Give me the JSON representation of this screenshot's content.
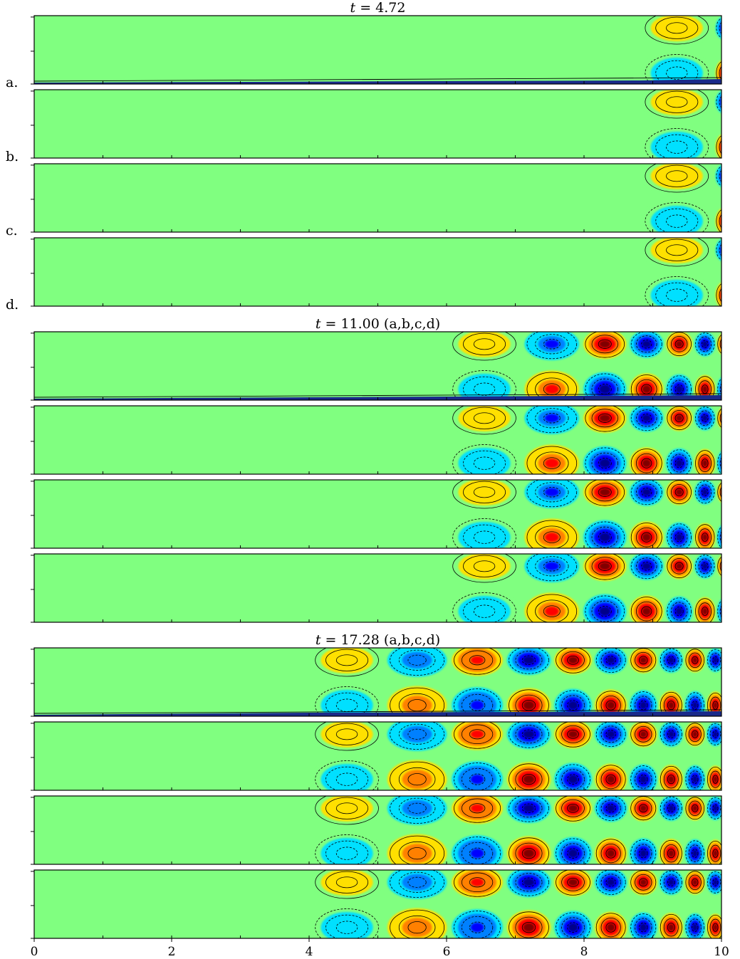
{
  "chart_data": {
    "type": "heatmap",
    "description_of_content": "filled contour fields with solid (positive) and dashed (negative) contour lines",
    "colormap": "jet",
    "xlim": [
      0,
      10
    ],
    "x_ticks": [
      0,
      2,
      4,
      6,
      8,
      10
    ],
    "x_tick_labels": [
      "0",
      "2",
      "4",
      "6",
      "8",
      "10"
    ],
    "panel_labels": [
      "a.",
      "b.",
      "c.",
      "d."
    ],
    "groups": [
      {
        "title_var": "t",
        "title_value": "4.72",
        "title_suffix": "",
        "front_x": 8.8,
        "panels": [
          {
            "label": "a.",
            "wall_layer": true
          },
          {
            "label": "b.",
            "wall_layer": false
          },
          {
            "label": "c.",
            "wall_layer": false
          },
          {
            "label": "d.",
            "wall_layer": false
          }
        ]
      },
      {
        "title_var": "t",
        "title_value": "11.00",
        "title_suffix": "(a,b,c,d)",
        "front_x": 6.0,
        "panels": [
          {
            "label": "a",
            "wall_layer": true
          },
          {
            "label": "b",
            "wall_layer": false
          },
          {
            "label": "c",
            "wall_layer": false
          },
          {
            "label": "d",
            "wall_layer": false
          }
        ]
      },
      {
        "title_var": "t",
        "title_value": "17.28",
        "title_suffix": "(a,b,c,d)",
        "front_x": 4.0,
        "panels": [
          {
            "label": "a",
            "wall_layer": true
          },
          {
            "label": "b",
            "wall_layer": false
          },
          {
            "label": "c",
            "wall_layer": false
          },
          {
            "label": "d",
            "wall_layer": false
          }
        ]
      }
    ],
    "colors": {
      "background_field": "#80ff80",
      "positive_max": "#800000",
      "negative_max": "#00008c"
    }
  }
}
